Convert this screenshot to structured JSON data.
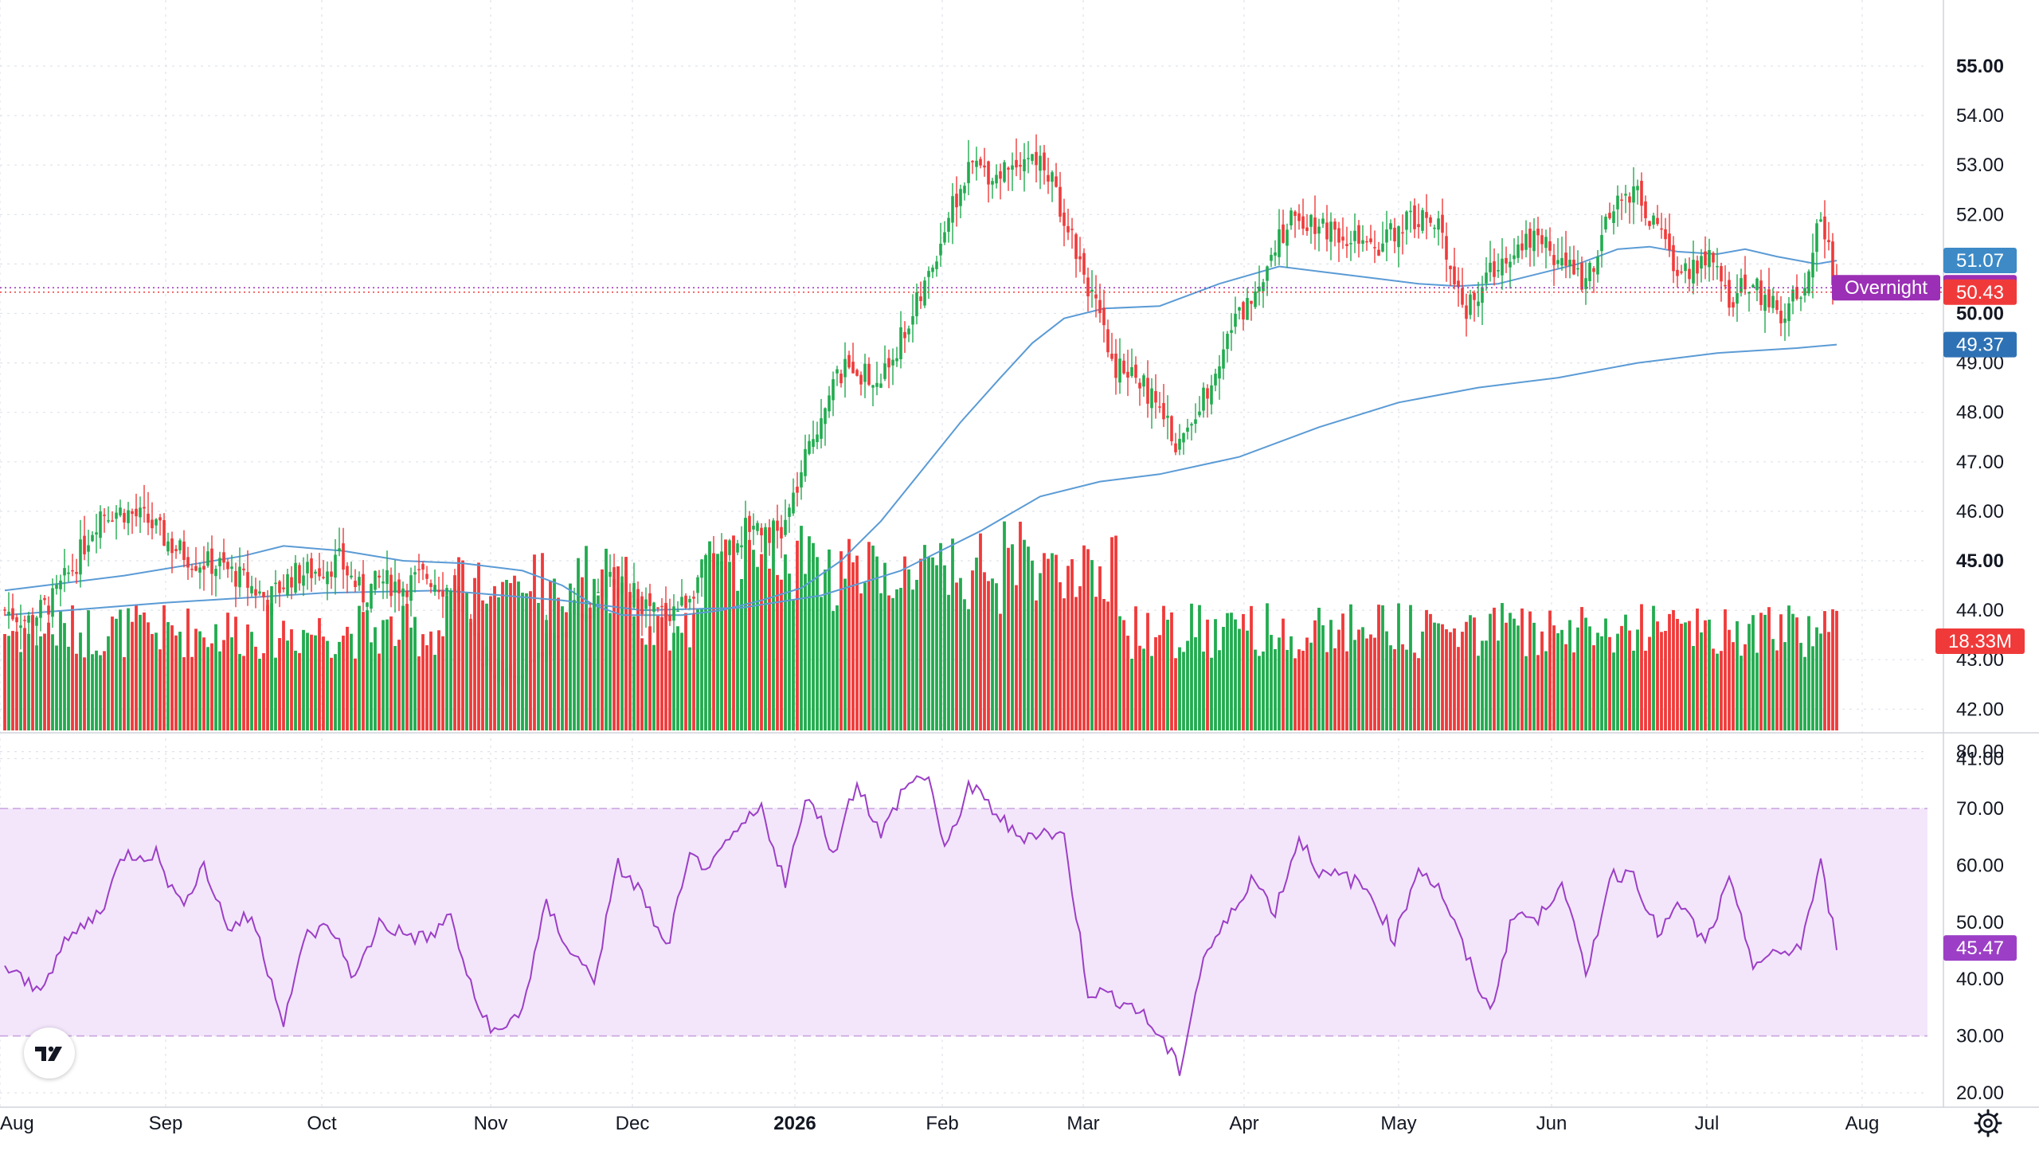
{
  "chart_data": [
    {
      "type": "candlestick",
      "title": "",
      "price_axis": {
        "min": 41,
        "max": 55,
        "step": 1,
        "ticks": [
          "41.00",
          "42.00",
          "43.00",
          "44.00",
          "45.00",
          "46.00",
          "47.00",
          "48.00",
          "49.00",
          "50.00",
          "51.00",
          "52.00",
          "53.00",
          "54.00",
          "55.00"
        ],
        "bold_ticks": [
          "45.00",
          "50.00",
          "55.00"
        ]
      },
      "time_axis": {
        "labels": [
          "Aug",
          "Sep",
          "Oct",
          "Nov",
          "Dec",
          "2026",
          "Feb",
          "Mar",
          "Apr",
          "May",
          "Jun",
          "Jul",
          "Aug"
        ],
        "bold_labels": [
          "2026"
        ]
      },
      "colors": {
        "up": "#22ab4f",
        "down": "#f03a3a",
        "ma": "#5b9bd5",
        "rsi": "#9c3fc6",
        "rsi_band": "#f3e6fb",
        "overnight": "#9b2fb5",
        "ma_short_tag": "#3d8ac7",
        "ma_long_tag": "#2e72b5"
      },
      "price_tags": {
        "ma_short": "51.07",
        "overnight_label": "Overnight",
        "overnight": "50.52",
        "last": "50.43",
        "ma_long": "49.37",
        "volume": "18.33M"
      },
      "moving_averages": [
        {
          "key": "ma_short",
          "points": [
            [
              0,
              44.4
            ],
            [
              30,
              44.7
            ],
            [
              60,
              45.1
            ],
            [
              70,
              45.3
            ],
            [
              85,
              45.2
            ],
            [
              100,
              45.0
            ],
            [
              115,
              44.95
            ],
            [
              130,
              44.8
            ],
            [
              140,
              44.5
            ],
            [
              148,
              44.1
            ],
            [
              155,
              43.9
            ],
            [
              170,
              43.9
            ],
            [
              180,
              44.0
            ],
            [
              190,
              44.2
            ],
            [
              200,
              44.45
            ],
            [
              210,
              45.0
            ],
            [
              220,
              45.8
            ],
            [
              230,
              46.8
            ],
            [
              240,
              47.8
            ],
            [
              250,
              48.7
            ],
            [
              258,
              49.4
            ],
            [
              266,
              49.9
            ],
            [
              276,
              50.1
            ],
            [
              290,
              50.15
            ],
            [
              305,
              50.6
            ],
            [
              320,
              50.95
            ],
            [
              330,
              50.85
            ],
            [
              345,
              50.7
            ],
            [
              355,
              50.6
            ],
            [
              365,
              50.55
            ],
            [
              375,
              50.6
            ],
            [
              385,
              50.8
            ],
            [
              395,
              51.0
            ],
            [
              405,
              51.3
            ],
            [
              413,
              51.35
            ],
            [
              420,
              51.25
            ],
            [
              430,
              51.2
            ],
            [
              437,
              51.3
            ],
            [
              445,
              51.15
            ],
            [
              455,
              51.0
            ],
            [
              460,
              51.07
            ]
          ]
        },
        {
          "key": "ma_long",
          "points": [
            [
              0,
              43.9
            ],
            [
              40,
              44.15
            ],
            [
              80,
              44.35
            ],
            [
              110,
              44.4
            ],
            [
              140,
              44.2
            ],
            [
              160,
              44.0
            ],
            [
              185,
              44.05
            ],
            [
              205,
              44.3
            ],
            [
              225,
              44.8
            ],
            [
              245,
              45.6
            ],
            [
              260,
              46.3
            ],
            [
              275,
              46.6
            ],
            [
              290,
              46.75
            ],
            [
              310,
              47.1
            ],
            [
              330,
              47.7
            ],
            [
              350,
              48.2
            ],
            [
              370,
              48.5
            ],
            [
              390,
              48.7
            ],
            [
              410,
              49.0
            ],
            [
              430,
              49.2
            ],
            [
              450,
              49.3
            ],
            [
              460,
              49.37
            ]
          ]
        }
      ],
      "candles_generated_from_anchors": [
        [
          0,
          44.0
        ],
        [
          6,
          43.8
        ],
        [
          12,
          44.2
        ],
        [
          18,
          45.0
        ],
        [
          24,
          46.0
        ],
        [
          30,
          46.0
        ],
        [
          36,
          45.8
        ],
        [
          42,
          45.3
        ],
        [
          48,
          45.0
        ],
        [
          54,
          44.9
        ],
        [
          60,
          44.6
        ],
        [
          66,
          44.2
        ],
        [
          72,
          44.7
        ],
        [
          78,
          44.8
        ],
        [
          84,
          45.0
        ],
        [
          90,
          44.3
        ],
        [
          94,
          44.6
        ],
        [
          100,
          44.5
        ],
        [
          106,
          44.7
        ],
        [
          112,
          44.4
        ],
        [
          118,
          43.3
        ],
        [
          124,
          42.8
        ],
        [
          128,
          42.4
        ],
        [
          134,
          43.2
        ],
        [
          140,
          43.5
        ],
        [
          146,
          44.0
        ],
        [
          152,
          44.6
        ],
        [
          158,
          44.3
        ],
        [
          164,
          43.9
        ],
        [
          170,
          44.1
        ],
        [
          176,
          44.9
        ],
        [
          182,
          45.3
        ],
        [
          188,
          45.8
        ],
        [
          195,
          45.5
        ],
        [
          201,
          47.0
        ],
        [
          207,
          48.5
        ],
        [
          213,
          49.0
        ],
        [
          219,
          48.5
        ],
        [
          225,
          49.5
        ],
        [
          231,
          50.5
        ],
        [
          237,
          52.0
        ],
        [
          243,
          53.0
        ],
        [
          249,
          52.8
        ],
        [
          255,
          53.2
        ],
        [
          261,
          53.0
        ],
        [
          267,
          51.8
        ],
        [
          272,
          50.6
        ],
        [
          278,
          49.0
        ],
        [
          284,
          48.8
        ],
        [
          290,
          48.0
        ],
        [
          295,
          47.3
        ],
        [
          301,
          48.3
        ],
        [
          307,
          49.6
        ],
        [
          313,
          50.3
        ],
        [
          319,
          51.5
        ],
        [
          325,
          52.0
        ],
        [
          331,
          51.8
        ],
        [
          337,
          51.6
        ],
        [
          343,
          51.2
        ],
        [
          349,
          51.7
        ],
        [
          355,
          52.0
        ],
        [
          361,
          51.6
        ],
        [
          367,
          50.0
        ],
        [
          373,
          50.8
        ],
        [
          379,
          51.4
        ],
        [
          385,
          51.6
        ],
        [
          391,
          51.0
        ],
        [
          397,
          50.7
        ],
        [
          403,
          51.9
        ],
        [
          409,
          52.6
        ],
        [
          415,
          51.6
        ],
        [
          421,
          50.8
        ],
        [
          427,
          51.2
        ],
        [
          433,
          50.3
        ],
        [
          439,
          50.6
        ],
        [
          445,
          50.0
        ],
        [
          451,
          50.4
        ],
        [
          456,
          52.0
        ],
        [
          460,
          50.45
        ]
      ],
      "volume_axis": {
        "max_M": 50
      },
      "rsi": {
        "ticks": [
          "20.00",
          "30.00",
          "40.00",
          "50.00",
          "60.00",
          "70.00",
          "80.00"
        ],
        "min": 20,
        "max": 80,
        "upper": 70,
        "lower": 30,
        "last": "45.47",
        "anchors": [
          [
            0,
            42
          ],
          [
            8,
            38
          ],
          [
            16,
            47
          ],
          [
            24,
            52
          ],
          [
            30,
            62
          ],
          [
            38,
            62
          ],
          [
            44,
            53
          ],
          [
            50,
            60
          ],
          [
            56,
            49
          ],
          [
            62,
            51
          ],
          [
            70,
            33
          ],
          [
            76,
            48
          ],
          [
            82,
            49
          ],
          [
            88,
            40
          ],
          [
            94,
            50
          ],
          [
            100,
            48
          ],
          [
            106,
            47
          ],
          [
            112,
            51
          ],
          [
            118,
            36
          ],
          [
            124,
            30
          ],
          [
            130,
            35
          ],
          [
            136,
            53
          ],
          [
            142,
            45
          ],
          [
            148,
            40
          ],
          [
            154,
            60
          ],
          [
            160,
            55
          ],
          [
            166,
            45
          ],
          [
            172,
            61
          ],
          [
            178,
            60
          ],
          [
            184,
            66
          ],
          [
            190,
            70
          ],
          [
            196,
            57
          ],
          [
            202,
            73
          ],
          [
            208,
            62
          ],
          [
            214,
            75
          ],
          [
            220,
            65
          ],
          [
            226,
            74
          ],
          [
            232,
            76
          ],
          [
            236,
            62
          ],
          [
            242,
            74
          ],
          [
            248,
            70
          ],
          [
            254,
            65
          ],
          [
            260,
            66
          ],
          [
            266,
            65
          ],
          [
            272,
            38
          ],
          [
            278,
            37
          ],
          [
            284,
            35
          ],
          [
            290,
            30
          ],
          [
            295,
            24
          ],
          [
            301,
            44
          ],
          [
            307,
            50
          ],
          [
            313,
            58
          ],
          [
            319,
            52
          ],
          [
            325,
            65
          ],
          [
            331,
            58
          ],
          [
            337,
            58
          ],
          [
            343,
            55
          ],
          [
            349,
            47
          ],
          [
            355,
            60
          ],
          [
            361,
            55
          ],
          [
            367,
            44
          ],
          [
            373,
            34
          ],
          [
            379,
            52
          ],
          [
            385,
            50
          ],
          [
            391,
            58
          ],
          [
            397,
            40
          ],
          [
            403,
            58
          ],
          [
            409,
            59
          ],
          [
            415,
            48
          ],
          [
            421,
            53
          ],
          [
            427,
            46
          ],
          [
            433,
            57
          ],
          [
            439,
            43
          ],
          [
            445,
            44
          ],
          [
            451,
            46
          ],
          [
            456,
            60
          ],
          [
            460,
            46
          ]
        ]
      }
    }
  ]
}
